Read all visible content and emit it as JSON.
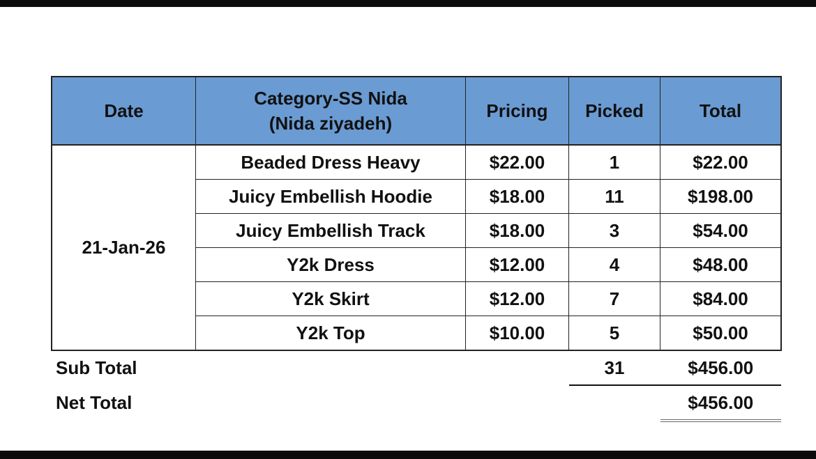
{
  "headers": {
    "date": "Date",
    "category_line1": "Category-SS Nida",
    "category_line2": "(Nida ziyadeh)",
    "pricing": "Pricing",
    "picked": "Picked",
    "total": "Total"
  },
  "date": "21-Jan-26",
  "rows": [
    {
      "item": "Beaded Dress Heavy",
      "pricing": "$22.00",
      "picked": "1",
      "total": "$22.00"
    },
    {
      "item": "Juicy Embellish Hoodie",
      "pricing": "$18.00",
      "picked": "11",
      "total": "$198.00"
    },
    {
      "item": "Juicy Embellish Track",
      "pricing": "$18.00",
      "picked": "3",
      "total": "$54.00"
    },
    {
      "item": "Y2k Dress",
      "pricing": "$12.00",
      "picked": "4",
      "total": "$48.00"
    },
    {
      "item": "Y2k Skirt",
      "pricing": "$12.00",
      "picked": "7",
      "total": "$84.00"
    },
    {
      "item": "Y2k Top",
      "pricing": "$10.00",
      "picked": "5",
      "total": "$50.00"
    }
  ],
  "subtotal": {
    "label": "Sub Total",
    "picked": "31",
    "total": "$456.00"
  },
  "nettotal": {
    "label": "Net Total",
    "total": "$456.00"
  },
  "colors": {
    "header_bg": "#6a9bd3"
  }
}
